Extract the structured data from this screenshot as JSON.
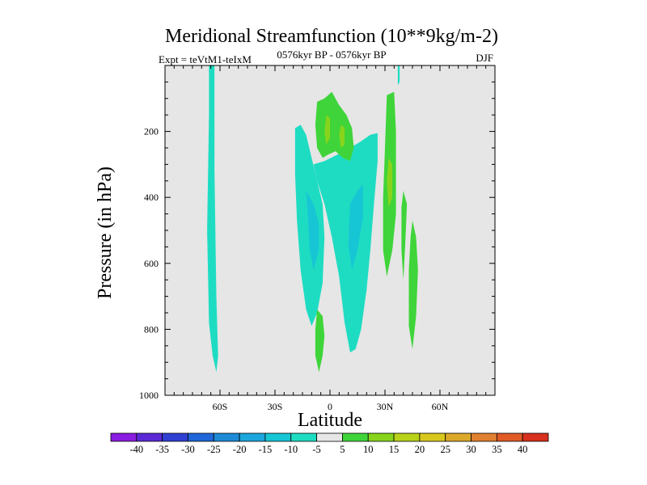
{
  "chart_data": {
    "type": "contour",
    "title": "Meridional Streamfunction (10**9kg/m-2)",
    "subtitle_left": "Expt = teVtM1-teIxM",
    "subtitle_center": "0576kyr BP - 0576kyr BP",
    "subtitle_right": "DJF",
    "xlabel": "Latitude",
    "ylabel": "Pressure (in hPa)",
    "xlim": [
      -90,
      90
    ],
    "ylim": [
      1000,
      0
    ],
    "x_ticks": [
      {
        "value": -60,
        "label": "60S"
      },
      {
        "value": -30,
        "label": "30S"
      },
      {
        "value": 0,
        "label": "0"
      },
      {
        "value": 30,
        "label": "30N"
      },
      {
        "value": 60,
        "label": "60N"
      }
    ],
    "y_ticks": [
      {
        "value": 200,
        "label": "200"
      },
      {
        "value": 400,
        "label": "400"
      },
      {
        "value": 600,
        "label": "600"
      },
      {
        "value": 800,
        "label": "800"
      },
      {
        "value": 1000,
        "label": "1000"
      }
    ],
    "background_color": "#e6e6e6",
    "colorbar": {
      "levels": [
        "-40",
        "-35",
        "-30",
        "-25",
        "-20",
        "-15",
        "-10",
        "-5",
        "5",
        "10",
        "15",
        "20",
        "25",
        "30",
        "35",
        "40"
      ],
      "colors": [
        "#8a1de0",
        "#5b2ad6",
        "#3040d2",
        "#1f66d8",
        "#1d8ad6",
        "#1ba6dc",
        "#17c6d4",
        "#1edcc2",
        "#e6e6e6",
        "#3fd43a",
        "#88d41c",
        "#b8d21a",
        "#d8c81e",
        "#dca82a",
        "#e08030",
        "#e05a26",
        "#d8301e"
      ]
    },
    "features": [
      {
        "name": "Southern high-latitude negative cell",
        "level": -10,
        "color": "#1edcc2",
        "points": [
          [
            -66,
            0
          ],
          [
            -63,
            0
          ],
          [
            -63,
            320
          ],
          [
            -62,
            700
          ],
          [
            -61,
            880
          ],
          [
            -62,
            930
          ],
          [
            -64,
            880
          ],
          [
            -66,
            780
          ],
          [
            -67,
            500
          ],
          [
            -66,
            150
          ]
        ]
      },
      {
        "name": "Tropical negative cell (west)",
        "level": -10,
        "color": "#1edcc2",
        "points": [
          [
            -19,
            190
          ],
          [
            -16,
            180
          ],
          [
            -13,
            210
          ],
          [
            -10,
            280
          ],
          [
            -7,
            350
          ],
          [
            -4,
            420
          ],
          [
            -3,
            520
          ],
          [
            -4,
            660
          ],
          [
            -7,
            750
          ],
          [
            -10,
            790
          ],
          [
            -13,
            740
          ],
          [
            -16,
            620
          ],
          [
            -18,
            470
          ],
          [
            -19,
            330
          ]
        ]
      },
      {
        "name": "Tropical negative cell (east)",
        "level": -10,
        "color": "#1edcc2",
        "points": [
          [
            -9,
            300
          ],
          [
            -3,
            290
          ],
          [
            4,
            270
          ],
          [
            11,
            250
          ],
          [
            17,
            230
          ],
          [
            22,
            210
          ],
          [
            26,
            205
          ],
          [
            26,
            290
          ],
          [
            24,
            420
          ],
          [
            22,
            560
          ],
          [
            20,
            680
          ],
          [
            17,
            800
          ],
          [
            14,
            860
          ],
          [
            11,
            870
          ],
          [
            8,
            780
          ],
          [
            5,
            640
          ],
          [
            1,
            520
          ],
          [
            -3,
            420
          ],
          [
            -7,
            350
          ]
        ]
      },
      {
        "name": "Tropical -15 core (west)",
        "level": -15,
        "color": "#17c6d4",
        "points": [
          [
            -13,
            380
          ],
          [
            -9,
            420
          ],
          [
            -6,
            480
          ],
          [
            -6,
            560
          ],
          [
            -9,
            620
          ],
          [
            -11,
            560
          ],
          [
            -12,
            460
          ]
        ]
      },
      {
        "name": "Tropical -15 core (east)",
        "level": -15,
        "color": "#17c6d4",
        "points": [
          [
            11,
            420
          ],
          [
            15,
            380
          ],
          [
            18,
            360
          ],
          [
            18,
            460
          ],
          [
            15,
            560
          ],
          [
            12,
            620
          ],
          [
            10,
            540
          ]
        ]
      },
      {
        "name": "Upper tropical positive cell",
        "level": 5,
        "color": "#3fd43a",
        "points": [
          [
            -7,
            110
          ],
          [
            -3,
            100
          ],
          [
            1,
            80
          ],
          [
            5,
            120
          ],
          [
            9,
            150
          ],
          [
            12,
            190
          ],
          [
            13,
            250
          ],
          [
            11,
            290
          ],
          [
            7,
            280
          ],
          [
            3,
            260
          ],
          [
            -1,
            270
          ],
          [
            -4,
            280
          ],
          [
            -7,
            250
          ],
          [
            -8,
            180
          ]
        ]
      },
      {
        "name": "Upper tropical +10 patch A",
        "level": 10,
        "color": "#88d41c",
        "points": [
          [
            -2,
            150
          ],
          [
            0,
            160
          ],
          [
            0,
            220
          ],
          [
            -2,
            240
          ],
          [
            -3,
            200
          ]
        ]
      },
      {
        "name": "Upper tropical +10 patch B",
        "level": 10,
        "color": "#88d41c",
        "points": [
          [
            6,
            180
          ],
          [
            8,
            190
          ],
          [
            8,
            240
          ],
          [
            6,
            250
          ],
          [
            5,
            210
          ]
        ]
      },
      {
        "name": "Northern subtropical positive cell",
        "level": 5,
        "color": "#3fd43a",
        "points": [
          [
            31,
            90
          ],
          [
            35,
            80
          ],
          [
            36,
            200
          ],
          [
            36,
            330
          ],
          [
            36,
            450
          ],
          [
            34,
            560
          ],
          [
            31,
            640
          ],
          [
            29,
            560
          ],
          [
            29,
            400
          ],
          [
            30,
            250
          ]
        ]
      },
      {
        "name": "Northern subtropical +10 core",
        "level": 10,
        "color": "#88d41c",
        "points": [
          [
            32,
            280
          ],
          [
            34,
            300
          ],
          [
            34,
            400
          ],
          [
            32,
            430
          ],
          [
            31,
            350
          ]
        ]
      },
      {
        "name": "Northern mid-latitude positive cell",
        "level": 5,
        "color": "#3fd43a",
        "points": [
          [
            45,
            470
          ],
          [
            47,
            520
          ],
          [
            48,
            620
          ],
          [
            47,
            760
          ],
          [
            45,
            860
          ],
          [
            43,
            790
          ],
          [
            43,
            620
          ],
          [
            44,
            520
          ]
        ]
      },
      {
        "name": "Northern mid-latitude positive strip",
        "level": 5,
        "color": "#3fd43a",
        "points": [
          [
            40,
            380
          ],
          [
            42,
            420
          ],
          [
            41,
            550
          ],
          [
            40,
            650
          ],
          [
            39,
            560
          ],
          [
            39,
            430
          ]
        ]
      },
      {
        "name": "Equatorial near-surface positive cell",
        "level": 5,
        "color": "#3fd43a",
        "points": [
          [
            -7,
            740
          ],
          [
            -4,
            760
          ],
          [
            -3,
            820
          ],
          [
            -4,
            880
          ],
          [
            -6,
            930
          ],
          [
            -8,
            880
          ],
          [
            -8,
            800
          ]
        ]
      },
      {
        "name": "Northern upper negative streak",
        "level": -10,
        "color": "#1edcc2",
        "points": [
          [
            37,
            0
          ],
          [
            38,
            0
          ],
          [
            38,
            50
          ],
          [
            37,
            60
          ]
        ]
      }
    ]
  }
}
